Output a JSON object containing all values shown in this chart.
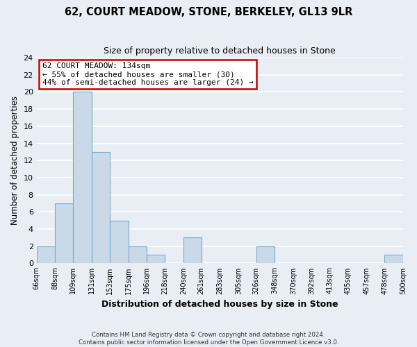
{
  "title": "62, COURT MEADOW, STONE, BERKELEY, GL13 9LR",
  "subtitle": "Size of property relative to detached houses in Stone",
  "xlabel": "Distribution of detached houses by size in Stone",
  "ylabel": "Number of detached properties",
  "footnote1": "Contains HM Land Registry data © Crown copyright and database right 2024.",
  "footnote2": "Contains public sector information licensed under the Open Government Licence v3.0.",
  "bar_edges": [
    66,
    88,
    109,
    131,
    153,
    175,
    196,
    218,
    240,
    261,
    283,
    305,
    326,
    348,
    370,
    392,
    413,
    435,
    457,
    478,
    500
  ],
  "bar_heights": [
    2,
    7,
    20,
    13,
    5,
    2,
    1,
    0,
    3,
    0,
    0,
    0,
    2,
    0,
    0,
    0,
    0,
    0,
    0,
    1
  ],
  "bar_color": "#c9d9e8",
  "bar_edge_color": "#7aaac8",
  "ylim": [
    0,
    24
  ],
  "yticks": [
    0,
    2,
    4,
    6,
    8,
    10,
    12,
    14,
    16,
    18,
    20,
    22,
    24
  ],
  "tick_labels": [
    "66sqm",
    "88sqm",
    "109sqm",
    "131sqm",
    "153sqm",
    "175sqm",
    "196sqm",
    "218sqm",
    "240sqm",
    "261sqm",
    "283sqm",
    "305sqm",
    "326sqm",
    "348sqm",
    "370sqm",
    "392sqm",
    "413sqm",
    "435sqm",
    "457sqm",
    "478sqm",
    "500sqm"
  ],
  "annotation_title": "62 COURT MEADOW: 134sqm",
  "annotation_line1": "← 55% of detached houses are smaller (30)",
  "annotation_line2": "44% of semi-detached houses are larger (24) →",
  "annotation_box_color": "#ffffff",
  "annotation_box_edge": "#cc0000",
  "bg_color": "#e8eef4",
  "grid_color": "#ffffff"
}
